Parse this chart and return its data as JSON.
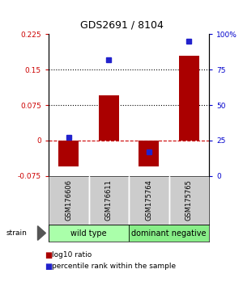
{
  "title": "GDS2691 / 8104",
  "samples": [
    "GSM176606",
    "GSM176611",
    "GSM175764",
    "GSM175765"
  ],
  "log10_ratio": [
    -0.055,
    0.095,
    -0.055,
    0.18
  ],
  "percentile_rank": [
    27,
    82,
    17,
    95
  ],
  "ylim_left": [
    -0.075,
    0.225
  ],
  "ylim_right": [
    0,
    100
  ],
  "yticks_left": [
    -0.075,
    0,
    0.075,
    0.15,
    0.225
  ],
  "yticks_right": [
    0,
    25,
    50,
    75,
    100
  ],
  "ytick_labels_left": [
    "-0.075",
    "0",
    "0.075",
    "0.15",
    "0.225"
  ],
  "ytick_labels_right": [
    "0",
    "25",
    "50",
    "75",
    "100%"
  ],
  "hlines": [
    0.075,
    0.15
  ],
  "bar_color": "#aa0000",
  "dot_color": "#2222cc",
  "bar_width": 0.5,
  "group_colors": [
    "#aaffaa",
    "#88ee88"
  ],
  "group_labels": [
    "wild type",
    "dominant negative"
  ],
  "label_color_left": "#cc0000",
  "label_color_right": "#0000cc",
  "zero_line_color": "#cc0000",
  "sample_box_color": "#cccccc",
  "legend_red_label": "log10 ratio",
  "legend_blue_label": "percentile rank within the sample"
}
